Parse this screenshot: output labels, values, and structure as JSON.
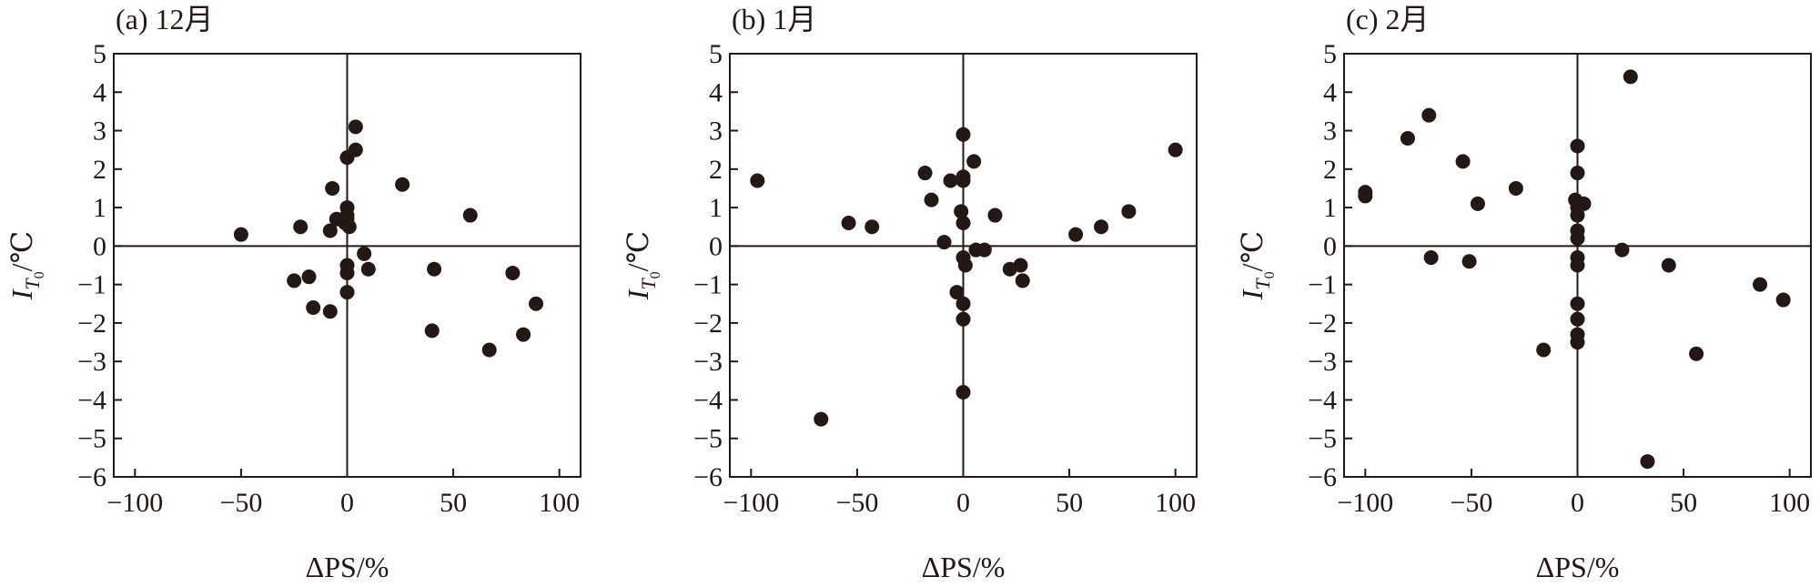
{
  "chart_data": [
    {
      "type": "scatter",
      "title": "(a) 12月",
      "xlabel": "ΔPS/%",
      "ylabel_main": "I",
      "ylabel_sub": "T",
      "ylabel_subsub": "0",
      "ylabel_unit": "/℃",
      "xlim": [
        -110,
        110
      ],
      "ylim": [
        -6,
        5
      ],
      "xticks": [
        -100,
        -50,
        0,
        50,
        100
      ],
      "xtick_labels": [
        "−100",
        "−50",
        "0",
        "50",
        "100"
      ],
      "yticks": [
        5,
        4,
        3,
        2,
        1,
        0,
        -1,
        -2,
        -3,
        -4,
        -5,
        -6
      ],
      "ytick_labels": [
        "5",
        "4",
        "3",
        "2",
        "1",
        "0",
        "−1",
        "−2",
        "−3",
        "−4",
        "−5",
        "−6"
      ],
      "grid": false,
      "points": [
        {
          "x": -50,
          "y": 0.3
        },
        {
          "x": -22,
          "y": 0.5
        },
        {
          "x": -25,
          "y": -0.9
        },
        {
          "x": -18,
          "y": -0.8
        },
        {
          "x": -16,
          "y": -1.6
        },
        {
          "x": -8,
          "y": -1.7
        },
        {
          "x": -8,
          "y": 0.4
        },
        {
          "x": -7,
          "y": 1.5
        },
        {
          "x": -5,
          "y": 0.7
        },
        {
          "x": -1,
          "y": 0.6
        },
        {
          "x": 0,
          "y": 0.7
        },
        {
          "x": 0,
          "y": 1.0
        },
        {
          "x": 0,
          "y": 0.8
        },
        {
          "x": 0,
          "y": 2.3
        },
        {
          "x": 1,
          "y": 0.5
        },
        {
          "x": 0,
          "y": -0.5
        },
        {
          "x": 0,
          "y": -0.7
        },
        {
          "x": 0,
          "y": -1.2
        },
        {
          "x": 4,
          "y": 2.5
        },
        {
          "x": 4,
          "y": 3.1
        },
        {
          "x": 8,
          "y": -0.2
        },
        {
          "x": 10,
          "y": -0.6
        },
        {
          "x": 26,
          "y": 1.6
        },
        {
          "x": 40,
          "y": -2.2
        },
        {
          "x": 41,
          "y": -0.6
        },
        {
          "x": 58,
          "y": 0.8
        },
        {
          "x": 67,
          "y": -2.7
        },
        {
          "x": 78,
          "y": -0.7
        },
        {
          "x": 83,
          "y": -2.3
        },
        {
          "x": 89,
          "y": -1.5
        }
      ]
    },
    {
      "type": "scatter",
      "title": "(b) 1月",
      "xlabel": "ΔPS/%",
      "ylabel_main": "I",
      "ylabel_sub": "T",
      "ylabel_subsub": "0",
      "ylabel_unit": "/℃",
      "xlim": [
        -110,
        110
      ],
      "ylim": [
        -6,
        5
      ],
      "xticks": [
        -100,
        -50,
        0,
        50,
        100
      ],
      "xtick_labels": [
        "−100",
        "−50",
        "0",
        "50",
        "100"
      ],
      "yticks": [
        5,
        4,
        3,
        2,
        1,
        0,
        -1,
        -2,
        -3,
        -4,
        -5,
        -6
      ],
      "ytick_labels": [
        "5",
        "4",
        "3",
        "2",
        "1",
        "0",
        "−1",
        "−2",
        "−3",
        "−4",
        "−5",
        "−6"
      ],
      "grid": false,
      "points": [
        {
          "x": -97,
          "y": 1.7
        },
        {
          "x": -67,
          "y": -4.5
        },
        {
          "x": -54,
          "y": 0.6
        },
        {
          "x": -43,
          "y": 0.5
        },
        {
          "x": -18,
          "y": 1.9
        },
        {
          "x": -15,
          "y": 1.2
        },
        {
          "x": -9,
          "y": 0.1
        },
        {
          "x": -6,
          "y": 1.7
        },
        {
          "x": -3,
          "y": -1.2
        },
        {
          "x": -1,
          "y": 0.9
        },
        {
          "x": 0,
          "y": 1.7
        },
        {
          "x": 0,
          "y": 1.8
        },
        {
          "x": 0,
          "y": 2.9
        },
        {
          "x": 0,
          "y": 0.6
        },
        {
          "x": 0,
          "y": -0.3
        },
        {
          "x": 1,
          "y": -0.5
        },
        {
          "x": 0,
          "y": -1.5
        },
        {
          "x": 0,
          "y": -1.9
        },
        {
          "x": 0,
          "y": -3.8
        },
        {
          "x": 5,
          "y": 2.2
        },
        {
          "x": 6,
          "y": -0.1
        },
        {
          "x": 10,
          "y": -0.1
        },
        {
          "x": 15,
          "y": 0.8
        },
        {
          "x": 22,
          "y": -0.6
        },
        {
          "x": 27,
          "y": -0.5
        },
        {
          "x": 28,
          "y": -0.9
        },
        {
          "x": 53,
          "y": 0.3
        },
        {
          "x": 65,
          "y": 0.5
        },
        {
          "x": 78,
          "y": 0.9
        },
        {
          "x": 100,
          "y": 2.5
        }
      ]
    },
    {
      "type": "scatter",
      "title": "(c) 2月",
      "xlabel": "ΔPS/%",
      "ylabel_main": "I",
      "ylabel_sub": "T",
      "ylabel_subsub": "0",
      "ylabel_unit": "/℃",
      "xlim": [
        -110,
        110
      ],
      "ylim": [
        -6,
        5
      ],
      "xticks": [
        -100,
        -50,
        0,
        50,
        100
      ],
      "xtick_labels": [
        "−100",
        "−50",
        "0",
        "50",
        "100"
      ],
      "yticks": [
        5,
        4,
        3,
        2,
        1,
        0,
        -1,
        -2,
        -3,
        -4,
        -5,
        -6
      ],
      "ytick_labels": [
        "5",
        "4",
        "3",
        "2",
        "1",
        "0",
        "−1",
        "−2",
        "−3",
        "−4",
        "−5",
        "−6"
      ],
      "grid": false,
      "points": [
        {
          "x": -100,
          "y": 1.4
        },
        {
          "x": -100,
          "y": 1.3
        },
        {
          "x": -80,
          "y": 2.8
        },
        {
          "x": -70,
          "y": 3.4
        },
        {
          "x": -69,
          "y": -0.3
        },
        {
          "x": -54,
          "y": 2.2
        },
        {
          "x": -51,
          "y": -0.4
        },
        {
          "x": -47,
          "y": 1.1
        },
        {
          "x": -29,
          "y": 1.5
        },
        {
          "x": -16,
          "y": -2.7
        },
        {
          "x": -1,
          "y": 1.2
        },
        {
          "x": 0,
          "y": 2.6
        },
        {
          "x": 0,
          "y": 1.9
        },
        {
          "x": 0,
          "y": 1.0
        },
        {
          "x": 0,
          "y": 0.8
        },
        {
          "x": 0,
          "y": 0.4
        },
        {
          "x": 0,
          "y": 0.2
        },
        {
          "x": 0,
          "y": -0.3
        },
        {
          "x": 0,
          "y": -0.5
        },
        {
          "x": 0,
          "y": -1.5
        },
        {
          "x": 0,
          "y": -1.9
        },
        {
          "x": 0,
          "y": -2.3
        },
        {
          "x": 0,
          "y": -2.5
        },
        {
          "x": 3,
          "y": 1.1
        },
        {
          "x": 21,
          "y": -0.1
        },
        {
          "x": 25,
          "y": 4.4
        },
        {
          "x": 33,
          "y": -5.6
        },
        {
          "x": 43,
          "y": -0.5
        },
        {
          "x": 56,
          "y": -2.8
        },
        {
          "x": 86,
          "y": -1.0
        },
        {
          "x": 97,
          "y": -1.4
        }
      ]
    }
  ]
}
